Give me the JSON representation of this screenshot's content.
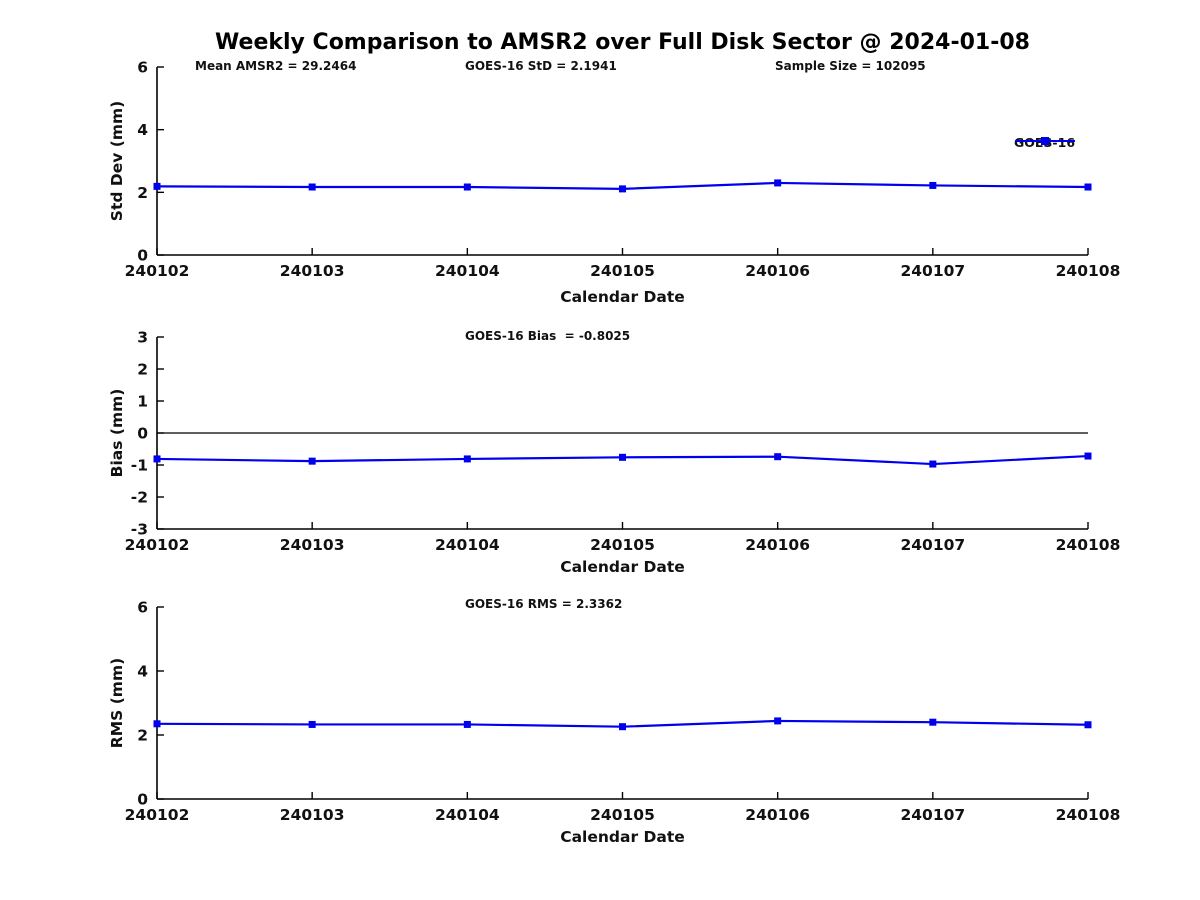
{
  "title": "Weekly Comparison to AMSR2 over Full Disk Sector @ 2024-01-08",
  "colors": {
    "line": "#0000EE",
    "axis": "#000000",
    "text": "#111111"
  },
  "chart_data": [
    {
      "type": "line",
      "name": "std-dev",
      "categories": [
        "240102",
        "240103",
        "240104",
        "240105",
        "240106",
        "240107",
        "240108"
      ],
      "series": [
        {
          "name": "GOES-16",
          "values": [
            2.19,
            2.17,
            2.17,
            2.11,
            2.3,
            2.22,
            2.17
          ]
        }
      ],
      "xlabel": "Calendar Date",
      "ylabel": "Std Dev (mm)",
      "ylim": [
        0,
        6
      ],
      "yticks": [
        0,
        2,
        4,
        6
      ],
      "grid": false,
      "zero_line": false,
      "marker": "square",
      "annotations": [
        "Mean AMSR2 = 29.2464",
        "GOES-16 StD = 2.1941",
        "Sample Size = 102095"
      ],
      "legend": {
        "label": "GOES-16",
        "position": "top-right"
      }
    },
    {
      "type": "line",
      "name": "bias",
      "categories": [
        "240102",
        "240103",
        "240104",
        "240105",
        "240106",
        "240107",
        "240108"
      ],
      "series": [
        {
          "name": "GOES-16",
          "values": [
            -0.81,
            -0.88,
            -0.81,
            -0.76,
            -0.74,
            -0.97,
            -0.72
          ]
        }
      ],
      "xlabel": "Calendar Date",
      "ylabel": "Bias (mm)",
      "ylim": [
        -3,
        3
      ],
      "yticks": [
        -3,
        -2,
        -1,
        0,
        1,
        2,
        3
      ],
      "grid": false,
      "zero_line": true,
      "marker": "square",
      "annotations": [
        "GOES-16 Bias  = -0.8025"
      ]
    },
    {
      "type": "line",
      "name": "rms",
      "categories": [
        "240102",
        "240103",
        "240104",
        "240105",
        "240106",
        "240107",
        "240108"
      ],
      "series": [
        {
          "name": "GOES-16",
          "values": [
            2.35,
            2.33,
            2.33,
            2.26,
            2.44,
            2.4,
            2.32
          ]
        }
      ],
      "xlabel": "Calendar Date",
      "ylabel": "RMS (mm)",
      "ylim": [
        0,
        6
      ],
      "yticks": [
        0,
        2,
        4,
        6
      ],
      "grid": false,
      "zero_line": false,
      "marker": "square",
      "annotations": [
        "GOES-16 RMS = 2.3362"
      ]
    }
  ]
}
